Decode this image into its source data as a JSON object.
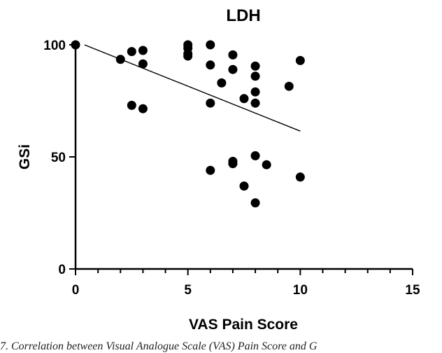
{
  "chart_data": {
    "type": "scatter",
    "title": "LDH",
    "xlabel": "VAS Pain Score",
    "ylabel": "GSi",
    "xlim": [
      0,
      15
    ],
    "ylim": [
      0,
      100
    ],
    "xticks": [
      "0",
      "5",
      "10",
      "15"
    ],
    "yticks": [
      "0",
      "50",
      "100"
    ],
    "grid": false,
    "points": [
      {
        "x": 0,
        "y": 100
      },
      {
        "x": 2,
        "y": 93.5
      },
      {
        "x": 2.5,
        "y": 97
      },
      {
        "x": 2.5,
        "y": 73
      },
      {
        "x": 3,
        "y": 97.5
      },
      {
        "x": 3,
        "y": 91.5
      },
      {
        "x": 3,
        "y": 71.5
      },
      {
        "x": 5,
        "y": 100
      },
      {
        "x": 5,
        "y": 98.5
      },
      {
        "x": 5,
        "y": 96
      },
      {
        "x": 5,
        "y": 95
      },
      {
        "x": 6,
        "y": 100
      },
      {
        "x": 6,
        "y": 91
      },
      {
        "x": 6,
        "y": 74
      },
      {
        "x": 6,
        "y": 44
      },
      {
        "x": 6.5,
        "y": 83
      },
      {
        "x": 7,
        "y": 95.5
      },
      {
        "x": 7,
        "y": 89
      },
      {
        "x": 7,
        "y": 48
      },
      {
        "x": 7,
        "y": 47
      },
      {
        "x": 7.5,
        "y": 76
      },
      {
        "x": 7.5,
        "y": 37
      },
      {
        "x": 8,
        "y": 90.5
      },
      {
        "x": 8,
        "y": 86
      },
      {
        "x": 8,
        "y": 79
      },
      {
        "x": 8,
        "y": 74
      },
      {
        "x": 8,
        "y": 50.5
      },
      {
        "x": 8,
        "y": 29.5
      },
      {
        "x": 8.5,
        "y": 46.5
      },
      {
        "x": 9.5,
        "y": 81.5
      },
      {
        "x": 10,
        "y": 93
      },
      {
        "x": 10,
        "y": 41
      }
    ],
    "trendline": {
      "x": [
        0.4,
        10
      ],
      "y": [
        100,
        61.5
      ]
    }
  },
  "caption": "7. Correlation between Visual Analogue Scale (VAS) Pain Score and G"
}
